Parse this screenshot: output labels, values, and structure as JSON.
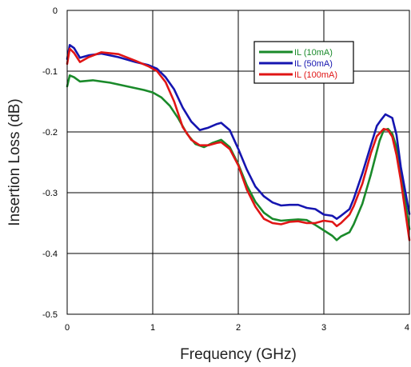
{
  "chart_data": {
    "type": "line",
    "xlabel": "Frequency (GHz)",
    "ylabel": "Insertion Loss (dB)",
    "xlim": [
      0,
      4
    ],
    "ylim": [
      -0.5,
      0
    ],
    "x_ticks": [
      "0",
      "1",
      "2",
      "3",
      "4"
    ],
    "y_ticks": [
      "0",
      "-0.1",
      "-0.2",
      "-0.3",
      "-0.4",
      "-0.5"
    ],
    "grid": true,
    "legend_position": "top-right",
    "series": [
      {
        "name": "IL (10mA)",
        "color": "#1a8a2a",
        "points": [
          [
            0,
            -0.125
          ],
          [
            0.03,
            -0.107
          ],
          [
            0.08,
            -0.11
          ],
          [
            0.15,
            -0.117
          ],
          [
            0.3,
            -0.115
          ],
          [
            0.5,
            -0.119
          ],
          [
            0.7,
            -0.125
          ],
          [
            0.9,
            -0.131
          ],
          [
            1.0,
            -0.135
          ],
          [
            1.1,
            -0.143
          ],
          [
            1.2,
            -0.157
          ],
          [
            1.3,
            -0.178
          ],
          [
            1.4,
            -0.203
          ],
          [
            1.5,
            -0.22
          ],
          [
            1.6,
            -0.225
          ],
          [
            1.7,
            -0.218
          ],
          [
            1.8,
            -0.213
          ],
          [
            1.9,
            -0.225
          ],
          [
            2.0,
            -0.253
          ],
          [
            2.1,
            -0.288
          ],
          [
            2.2,
            -0.315
          ],
          [
            2.3,
            -0.333
          ],
          [
            2.4,
            -0.343
          ],
          [
            2.5,
            -0.346
          ],
          [
            2.6,
            -0.345
          ],
          [
            2.7,
            -0.344
          ],
          [
            2.8,
            -0.345
          ],
          [
            2.9,
            -0.353
          ],
          [
            3.0,
            -0.362
          ],
          [
            3.1,
            -0.371
          ],
          [
            3.15,
            -0.378
          ],
          [
            3.2,
            -0.372
          ],
          [
            3.3,
            -0.365
          ],
          [
            3.35,
            -0.352
          ],
          [
            3.45,
            -0.318
          ],
          [
            3.55,
            -0.27
          ],
          [
            3.65,
            -0.215
          ],
          [
            3.7,
            -0.197
          ],
          [
            3.75,
            -0.195
          ],
          [
            3.8,
            -0.203
          ],
          [
            3.85,
            -0.225
          ],
          [
            3.9,
            -0.265
          ],
          [
            4.0,
            -0.36
          ]
        ]
      },
      {
        "name": "IL (50mA)",
        "color": "#1515b0",
        "points": [
          [
            0,
            -0.08
          ],
          [
            0.03,
            -0.057
          ],
          [
            0.08,
            -0.062
          ],
          [
            0.15,
            -0.078
          ],
          [
            0.25,
            -0.074
          ],
          [
            0.4,
            -0.071
          ],
          [
            0.6,
            -0.077
          ],
          [
            0.8,
            -0.085
          ],
          [
            0.95,
            -0.09
          ],
          [
            1.05,
            -0.096
          ],
          [
            1.15,
            -0.11
          ],
          [
            1.25,
            -0.13
          ],
          [
            1.35,
            -0.16
          ],
          [
            1.45,
            -0.183
          ],
          [
            1.55,
            -0.197
          ],
          [
            1.65,
            -0.193
          ],
          [
            1.75,
            -0.187
          ],
          [
            1.8,
            -0.185
          ],
          [
            1.9,
            -0.197
          ],
          [
            2.0,
            -0.228
          ],
          [
            2.1,
            -0.262
          ],
          [
            2.2,
            -0.29
          ],
          [
            2.3,
            -0.306
          ],
          [
            2.4,
            -0.316
          ],
          [
            2.5,
            -0.321
          ],
          [
            2.6,
            -0.32
          ],
          [
            2.7,
            -0.32
          ],
          [
            2.8,
            -0.325
          ],
          [
            2.9,
            -0.327
          ],
          [
            3.0,
            -0.336
          ],
          [
            3.1,
            -0.338
          ],
          [
            3.15,
            -0.343
          ],
          [
            3.2,
            -0.338
          ],
          [
            3.3,
            -0.327
          ],
          [
            3.35,
            -0.31
          ],
          [
            3.45,
            -0.268
          ],
          [
            3.55,
            -0.222
          ],
          [
            3.62,
            -0.19
          ],
          [
            3.67,
            -0.18
          ],
          [
            3.72,
            -0.171
          ],
          [
            3.8,
            -0.177
          ],
          [
            3.85,
            -0.205
          ],
          [
            3.9,
            -0.258
          ],
          [
            4.0,
            -0.335
          ]
        ]
      },
      {
        "name": "IL (100mA)",
        "color": "#e01515",
        "points": [
          [
            0,
            -0.088
          ],
          [
            0.03,
            -0.063
          ],
          [
            0.08,
            -0.07
          ],
          [
            0.15,
            -0.085
          ],
          [
            0.25,
            -0.077
          ],
          [
            0.4,
            -0.069
          ],
          [
            0.6,
            -0.072
          ],
          [
            0.8,
            -0.083
          ],
          [
            0.95,
            -0.092
          ],
          [
            1.05,
            -0.1
          ],
          [
            1.15,
            -0.118
          ],
          [
            1.25,
            -0.15
          ],
          [
            1.35,
            -0.192
          ],
          [
            1.45,
            -0.213
          ],
          [
            1.55,
            -0.222
          ],
          [
            1.65,
            -0.222
          ],
          [
            1.75,
            -0.218
          ],
          [
            1.8,
            -0.217
          ],
          [
            1.9,
            -0.228
          ],
          [
            2.0,
            -0.255
          ],
          [
            2.1,
            -0.295
          ],
          [
            2.2,
            -0.323
          ],
          [
            2.3,
            -0.343
          ],
          [
            2.4,
            -0.35
          ],
          [
            2.5,
            -0.352
          ],
          [
            2.6,
            -0.348
          ],
          [
            2.7,
            -0.347
          ],
          [
            2.8,
            -0.35
          ],
          [
            2.9,
            -0.35
          ],
          [
            3.0,
            -0.346
          ],
          [
            3.1,
            -0.348
          ],
          [
            3.15,
            -0.355
          ],
          [
            3.2,
            -0.35
          ],
          [
            3.3,
            -0.336
          ],
          [
            3.35,
            -0.322
          ],
          [
            3.45,
            -0.285
          ],
          [
            3.55,
            -0.235
          ],
          [
            3.62,
            -0.207
          ],
          [
            3.7,
            -0.195
          ],
          [
            3.75,
            -0.197
          ],
          [
            3.8,
            -0.208
          ],
          [
            3.85,
            -0.238
          ],
          [
            3.9,
            -0.28
          ],
          [
            4.0,
            -0.378
          ]
        ]
      }
    ]
  }
}
